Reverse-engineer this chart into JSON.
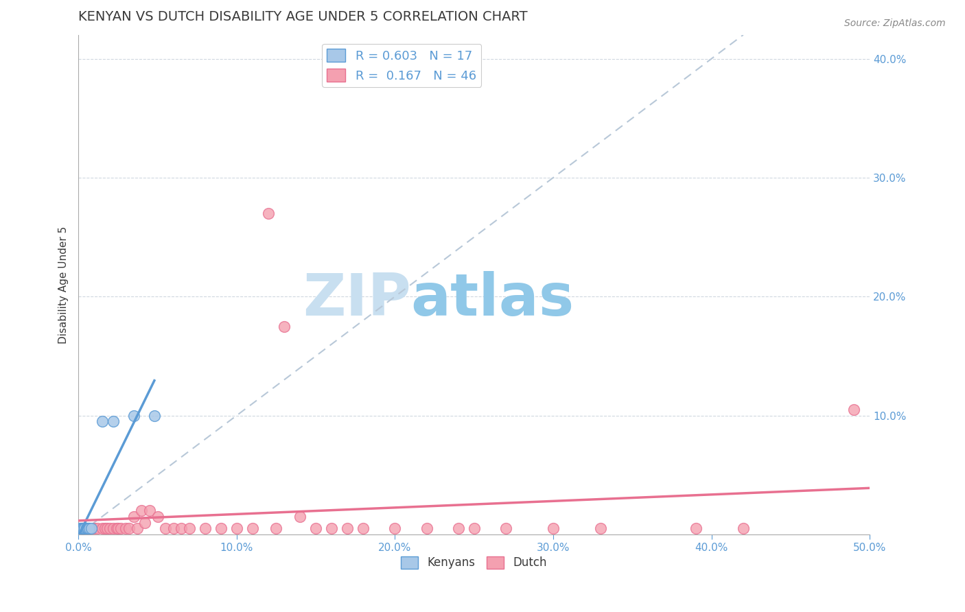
{
  "title": "KENYAN VS DUTCH DISABILITY AGE UNDER 5 CORRELATION CHART",
  "source_text": "Source: ZipAtlas.com",
  "ylabel": "Disability Age Under 5",
  "xlim": [
    0.0,
    0.5
  ],
  "ylim": [
    0.0,
    0.42
  ],
  "xticks": [
    0.0,
    0.1,
    0.2,
    0.3,
    0.4,
    0.5
  ],
  "yticks": [
    0.1,
    0.2,
    0.3,
    0.4
  ],
  "ytick_labels": [
    "10.0%",
    "20.0%",
    "30.0%",
    "40.0%"
  ],
  "xtick_labels": [
    "0.0%",
    "10.0%",
    "20.0%",
    "30.0%",
    "40.0%",
    "50.0%"
  ],
  "title_color": "#3a3a3a",
  "axis_color": "#5b9bd5",
  "title_fontsize": 14,
  "legend_R_kenyan": "0.603",
  "legend_N_kenyan": "17",
  "legend_R_dutch": "0.167",
  "legend_N_dutch": "46",
  "kenyan_color": "#a8c8e8",
  "dutch_color": "#f4a0b0",
  "kenyan_line_color": "#5b9bd5",
  "dutch_line_color": "#e87090",
  "ref_line_color": "#b8c8d8",
  "watermark_zip": "ZIP",
  "watermark_atlas": "atlas",
  "watermark_color_zip": "#c8dff0",
  "watermark_color_atlas": "#90c8e8",
  "background_color": "#ffffff",
  "grid_color": "#d0d8e0",
  "kenyan_x": [
    0.001,
    0.002,
    0.002,
    0.003,
    0.003,
    0.004,
    0.004,
    0.005,
    0.005,
    0.006,
    0.006,
    0.007,
    0.008,
    0.015,
    0.022,
    0.035,
    0.048
  ],
  "kenyan_y": [
    0.005,
    0.005,
    0.005,
    0.005,
    0.005,
    0.005,
    0.005,
    0.005,
    0.005,
    0.005,
    0.005,
    0.005,
    0.005,
    0.095,
    0.095,
    0.1,
    0.1
  ],
  "dutch_x": [
    0.003,
    0.007,
    0.01,
    0.012,
    0.015,
    0.017,
    0.018,
    0.02,
    0.022,
    0.024,
    0.025,
    0.027,
    0.03,
    0.032,
    0.035,
    0.037,
    0.04,
    0.042,
    0.045,
    0.05,
    0.055,
    0.06,
    0.065,
    0.07,
    0.08,
    0.09,
    0.1,
    0.11,
    0.12,
    0.125,
    0.13,
    0.14,
    0.15,
    0.16,
    0.17,
    0.18,
    0.2,
    0.22,
    0.24,
    0.25,
    0.27,
    0.3,
    0.33,
    0.39,
    0.42,
    0.49
  ],
  "dutch_y": [
    0.005,
    0.005,
    0.005,
    0.005,
    0.005,
    0.005,
    0.005,
    0.005,
    0.005,
    0.005,
    0.005,
    0.005,
    0.005,
    0.005,
    0.015,
    0.005,
    0.02,
    0.01,
    0.02,
    0.015,
    0.005,
    0.005,
    0.005,
    0.005,
    0.005,
    0.005,
    0.005,
    0.005,
    0.27,
    0.005,
    0.175,
    0.015,
    0.005,
    0.005,
    0.005,
    0.005,
    0.005,
    0.005,
    0.005,
    0.005,
    0.005,
    0.005,
    0.005,
    0.005,
    0.005,
    0.105
  ]
}
